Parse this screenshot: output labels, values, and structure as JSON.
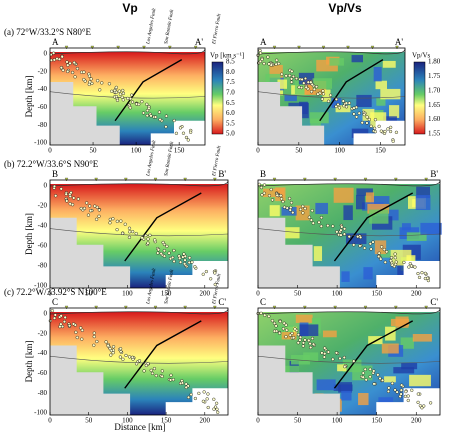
{
  "columns": [
    "Vp",
    "Vp/Vs"
  ],
  "rows": [
    {
      "label": "(a)  72°W/33.2°S   N80°E",
      "start": "A",
      "end": "A'",
      "xticks": [
        "0",
        "50",
        "100",
        "150"
      ]
    },
    {
      "label": "(b)  72.2°W/33.6°S   N90°E",
      "start": "B",
      "end": "B'",
      "xticks": [
        "0",
        "50",
        "100",
        "150",
        "200"
      ]
    },
    {
      "label": "(c)  72.2°W/33.92°S   N100°E",
      "start": "C",
      "end": "C'",
      "xticks": [
        "0",
        "50",
        "100",
        "150",
        "200"
      ]
    }
  ],
  "yticks": [
    "0",
    "-20",
    "-40",
    "-60",
    "-80",
    "-100"
  ],
  "y_axis_label": "Depth [km]",
  "x_axis_label": "Distance [km]",
  "faults": [
    "Los Angeles Fault",
    "San Ramón Fault",
    "El Fierro Fault"
  ],
  "colorbars": [
    {
      "title": "Vp [km s⁻¹]",
      "ticks": [
        "8.5",
        "8.0",
        "7.5",
        "7.0",
        "6.5",
        "6.0",
        "5.5",
        "5.0"
      ]
    },
    {
      "title": "Vp/Vs",
      "ticks": [
        "1.80",
        "1.75",
        "1.70",
        "1.65",
        "1.60",
        "1.55"
      ]
    }
  ]
}
